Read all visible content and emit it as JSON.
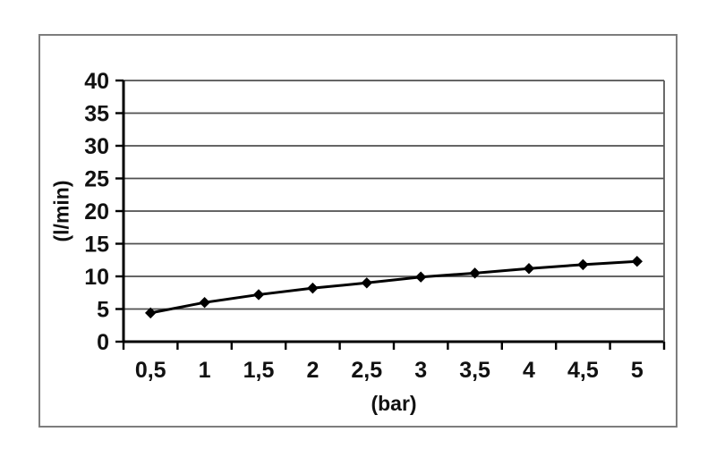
{
  "chart_data": {
    "type": "line",
    "title": "",
    "xlabel": "(bar)",
    "ylabel": "(l/min)",
    "x": [
      0.5,
      1,
      1.5,
      2,
      2.5,
      3,
      3.5,
      4,
      4.5,
      5
    ],
    "x_tick_labels": [
      "0,5",
      "1",
      "1,5",
      "2",
      "2,5",
      "3",
      "3,5",
      "4",
      "4,5",
      "5"
    ],
    "series": [
      {
        "name": "",
        "values": [
          4.4,
          6.0,
          7.2,
          8.2,
          9.0,
          9.9,
          10.5,
          11.2,
          11.8,
          12.3
        ]
      }
    ],
    "ylim": [
      0,
      40
    ],
    "y_ticks": [
      0,
      5,
      10,
      15,
      20,
      25,
      30,
      35,
      40
    ],
    "y_tick_labels": [
      "0",
      "5",
      "10",
      "15",
      "20",
      "25",
      "30",
      "35",
      "40"
    ],
    "grid": true,
    "legend": false,
    "marker": "diamond",
    "colors": {
      "line": "#000000",
      "marker": "#000000",
      "gridline": "#4f4f4f",
      "axis": "#000000",
      "plot_right_border": "#5a5a5a",
      "frame_border": "#7d7d7d",
      "text": "#111111",
      "background": "#ffffff"
    }
  }
}
